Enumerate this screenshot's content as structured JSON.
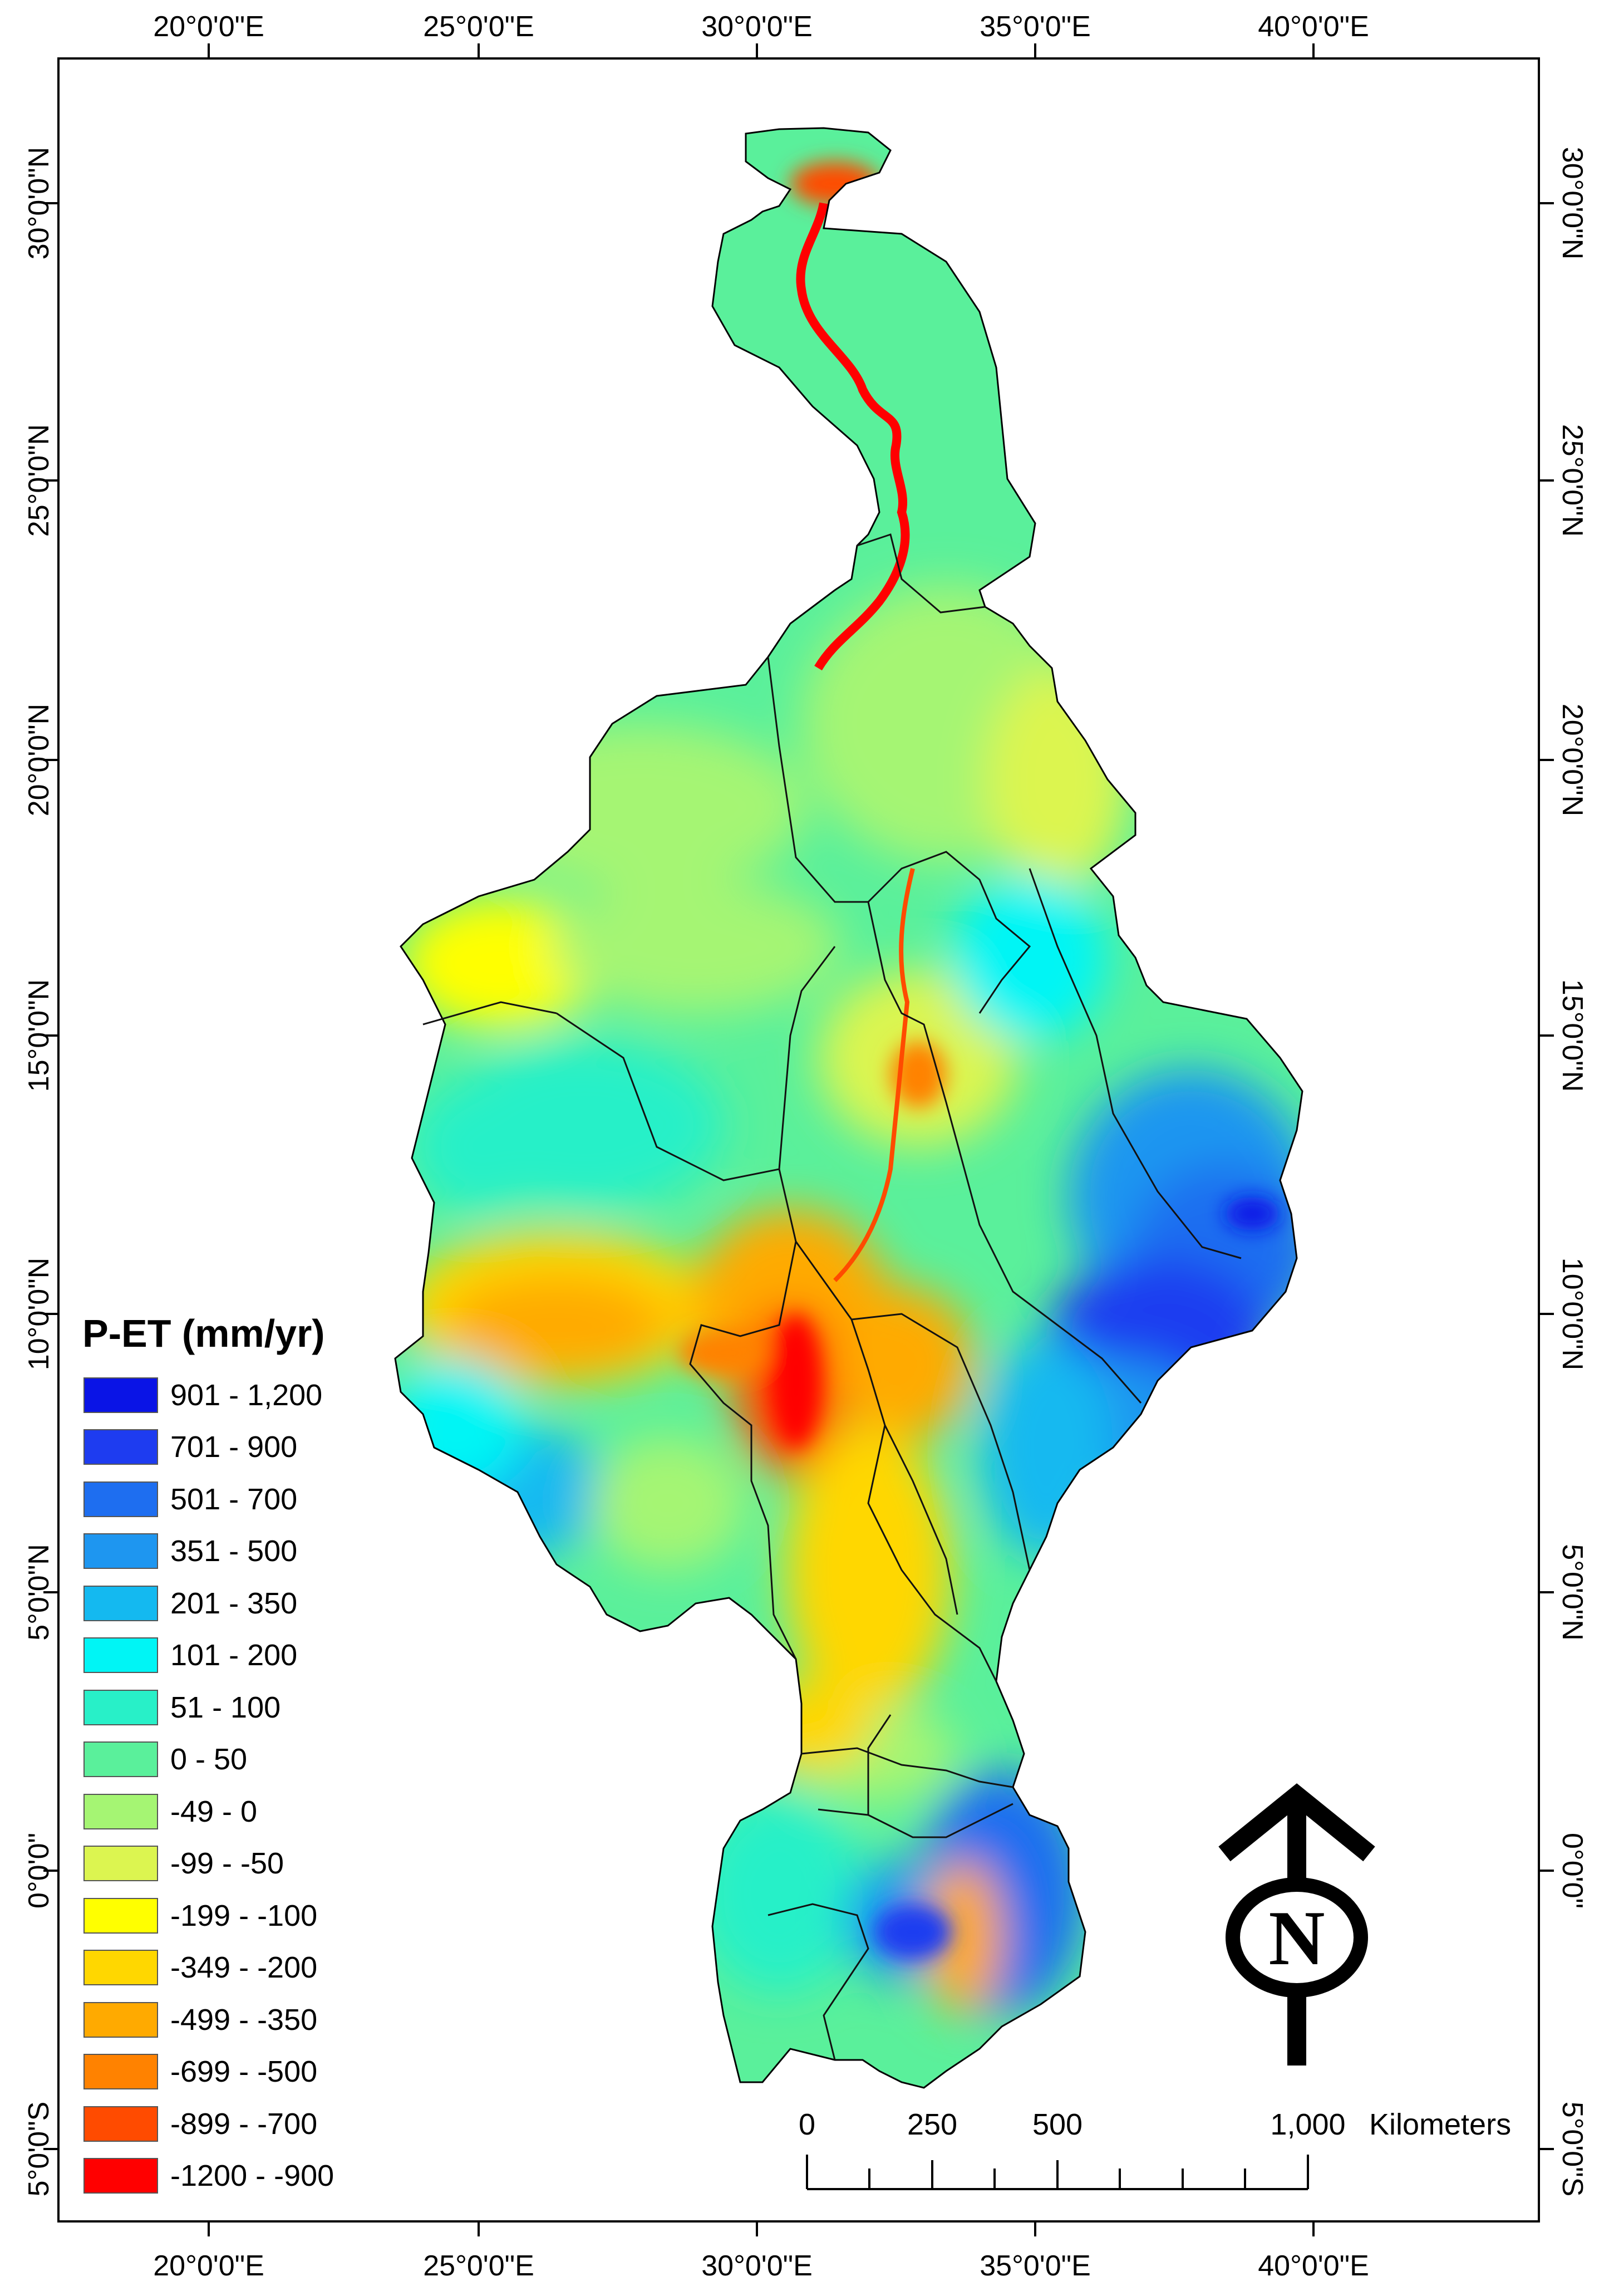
{
  "axes": {
    "top_ticks": [
      "20°0'0\"E",
      "25°0'0\"E",
      "30°0'0\"E",
      "35°0'0\"E",
      "40°0'0\"E"
    ],
    "bottom_ticks": [
      "20°0'0\"E",
      "25°0'0\"E",
      "30°0'0\"E",
      "35°0'0\"E",
      "40°0'0\"E"
    ],
    "left_ticks": [
      "30°0'0\"N",
      "25°0'0\"N",
      "20°0'0\"N",
      "15°0'0\"N",
      "10°0'0\"N",
      "5°0'0\"N",
      "0°0'0\"",
      "5°0'0\"S"
    ],
    "right_ticks": [
      "30°0'0\"N",
      "25°0'0\"N",
      "20°0'0\"N",
      "15°0'0\"N",
      "10°0'0\"N",
      "5°0'0\"N",
      "0°0'0\"",
      "5°0'0\"S"
    ]
  },
  "legend": {
    "title": "P-ET (mm/yr)",
    "items": [
      {
        "label": "901 - 1,200",
        "color": "#0a14e6"
      },
      {
        "label": "701 - 900",
        "color": "#1e3cf0"
      },
      {
        "label": "501 - 700",
        "color": "#1e6ef0"
      },
      {
        "label": "351 - 500",
        "color": "#1e96f0"
      },
      {
        "label": "201 - 350",
        "color": "#14b9f0"
      },
      {
        "label": "101 - 200",
        "color": "#00f5f5"
      },
      {
        "label": "51 - 100",
        "color": "#28f0c8"
      },
      {
        "label": "0 - 50",
        "color": "#5af09b"
      },
      {
        "label": "-49 - 0",
        "color": "#a5f573"
      },
      {
        "label": "-99 - -50",
        "color": "#dcf550"
      },
      {
        "label": "-199 - -100",
        "color": "#ffff00"
      },
      {
        "label": "-349 - -200",
        "color": "#ffd700"
      },
      {
        "label": "-499 - -350",
        "color": "#ffaa00"
      },
      {
        "label": "-699 - -500",
        "color": "#ff8200"
      },
      {
        "label": "-899 - -700",
        "color": "#ff4b00"
      },
      {
        "label": "-1200 - -900",
        "color": "#ff0000"
      }
    ]
  },
  "scale_bar": {
    "labels": [
      "0",
      "250",
      "500",
      "1,000"
    ],
    "unit": "Kilometers"
  },
  "north_arrow": {
    "letter": "N"
  }
}
